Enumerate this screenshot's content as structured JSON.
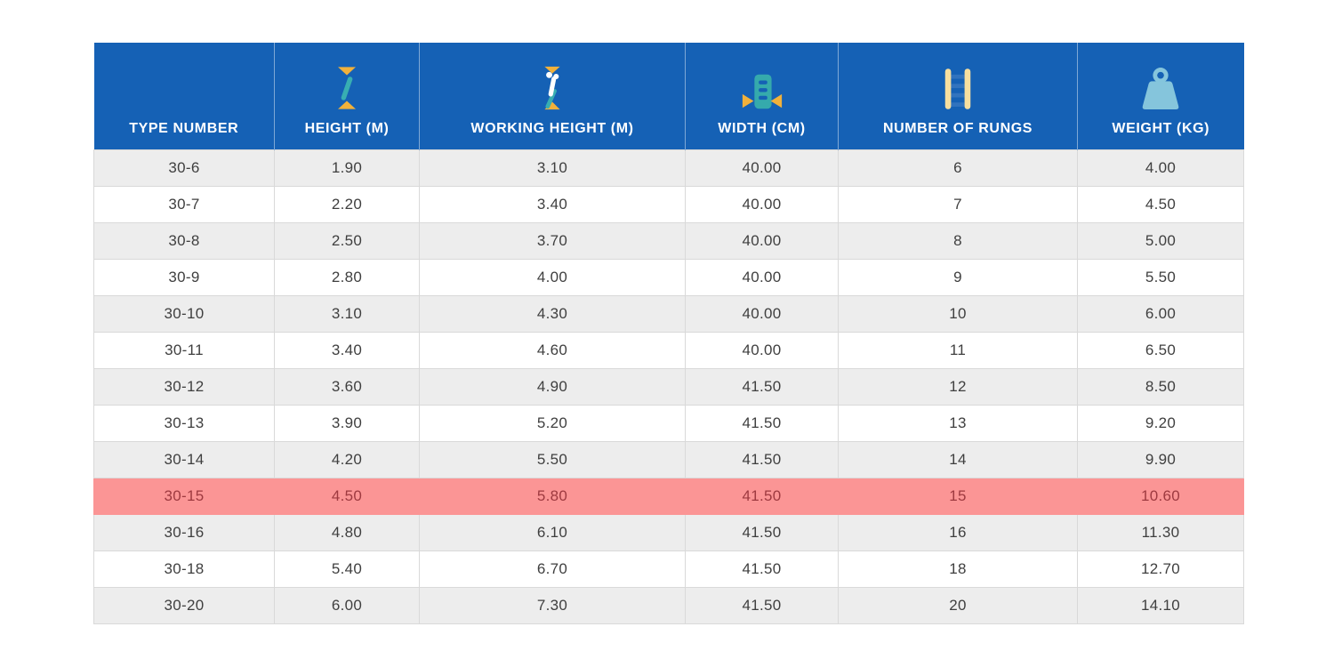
{
  "table": {
    "columns": [
      {
        "label": "TYPE NUMBER",
        "icon": null
      },
      {
        "label": "HEIGHT (M)",
        "icon": "height-measure-icon"
      },
      {
        "label": "WORKING HEIGHT (M)",
        "icon": "working-height-icon"
      },
      {
        "label": "WIDTH (CM)",
        "icon": "ladder-width-icon"
      },
      {
        "label": "NUMBER OF RUNGS",
        "icon": "ladder-rungs-icon"
      },
      {
        "label": "WEIGHT (KG)",
        "icon": "weight-icon"
      }
    ],
    "rows": [
      {
        "cells": [
          "30-6",
          "1.90",
          "3.10",
          "40.00",
          "6",
          "4.00"
        ],
        "highlighted": false
      },
      {
        "cells": [
          "30-7",
          "2.20",
          "3.40",
          "40.00",
          "7",
          "4.50"
        ],
        "highlighted": false
      },
      {
        "cells": [
          "30-8",
          "2.50",
          "3.70",
          "40.00",
          "8",
          "5.00"
        ],
        "highlighted": false
      },
      {
        "cells": [
          "30-9",
          "2.80",
          "4.00",
          "40.00",
          "9",
          "5.50"
        ],
        "highlighted": false
      },
      {
        "cells": [
          "30-10",
          "3.10",
          "4.30",
          "40.00",
          "10",
          "6.00"
        ],
        "highlighted": false
      },
      {
        "cells": [
          "30-11",
          "3.40",
          "4.60",
          "40.00",
          "11",
          "6.50"
        ],
        "highlighted": false
      },
      {
        "cells": [
          "30-12",
          "3.60",
          "4.90",
          "41.50",
          "12",
          "8.50"
        ],
        "highlighted": false
      },
      {
        "cells": [
          "30-13",
          "3.90",
          "5.20",
          "41.50",
          "13",
          "9.20"
        ],
        "highlighted": false
      },
      {
        "cells": [
          "30-14",
          "4.20",
          "5.50",
          "41.50",
          "14",
          "9.90"
        ],
        "highlighted": false
      },
      {
        "cells": [
          "30-15",
          "4.50",
          "5.80",
          "41.50",
          "15",
          "10.60"
        ],
        "highlighted": true
      },
      {
        "cells": [
          "30-16",
          "4.80",
          "6.10",
          "41.50",
          "16",
          "11.30"
        ],
        "highlighted": false
      },
      {
        "cells": [
          "30-18",
          "5.40",
          "6.70",
          "41.50",
          "18",
          "12.70"
        ],
        "highlighted": false
      },
      {
        "cells": [
          "30-20",
          "6.00",
          "7.30",
          "41.50",
          "20",
          "14.10"
        ],
        "highlighted": false
      }
    ],
    "highlighted_row": "30-15"
  },
  "colors": {
    "header_bg": "#1561B5",
    "row_alt_bg": "#EDEDED",
    "row_bg": "#FFFFFF",
    "highlight_bg": "#FB9595",
    "highlight_text": "#9E3A40",
    "body_text": "#3F3F3F",
    "border": "#D9D9D9",
    "icon_yellow": "#F1B13B",
    "icon_teal": "#38AEB2",
    "icon_lightblue": "#85C5DC",
    "icon_cream": "#F7DF9F",
    "icon_rung_blue": "#3173BE"
  }
}
